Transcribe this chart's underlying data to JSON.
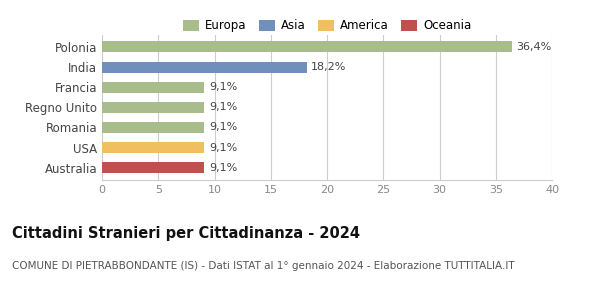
{
  "categories": [
    "Australia",
    "USA",
    "Romania",
    "Regno Unito",
    "Francia",
    "India",
    "Polonia"
  ],
  "values": [
    9.1,
    9.1,
    9.1,
    9.1,
    9.1,
    18.2,
    36.4
  ],
  "bar_colors": [
    "#c0504d",
    "#f0c060",
    "#a8bc8c",
    "#a8bc8c",
    "#a8bc8c",
    "#7090bb",
    "#a8bc8c"
  ],
  "labels": [
    "9,1%",
    "9,1%",
    "9,1%",
    "9,1%",
    "9,1%",
    "18,2%",
    "36,4%"
  ],
  "xlim": [
    0,
    40
  ],
  "xticks": [
    0,
    5,
    10,
    15,
    20,
    25,
    30,
    35,
    40
  ],
  "title": "Cittadini Stranieri per Cittadinanza - 2024",
  "subtitle": "COMUNE DI PIETRABBONDANTE (IS) - Dati ISTAT al 1° gennaio 2024 - Elaborazione TUTTITALIA.IT",
  "legend_labels": [
    "Europa",
    "Asia",
    "America",
    "Oceania"
  ],
  "legend_colors": [
    "#a8bc8c",
    "#7090bb",
    "#f0c060",
    "#c0504d"
  ],
  "bg_color": "#ffffff",
  "grid_color": "#cccccc",
  "bar_height": 0.55,
  "label_fontsize": 8.0,
  "title_fontsize": 10.5,
  "subtitle_fontsize": 7.5,
  "tick_fontsize": 8,
  "ytick_fontsize": 8.5
}
